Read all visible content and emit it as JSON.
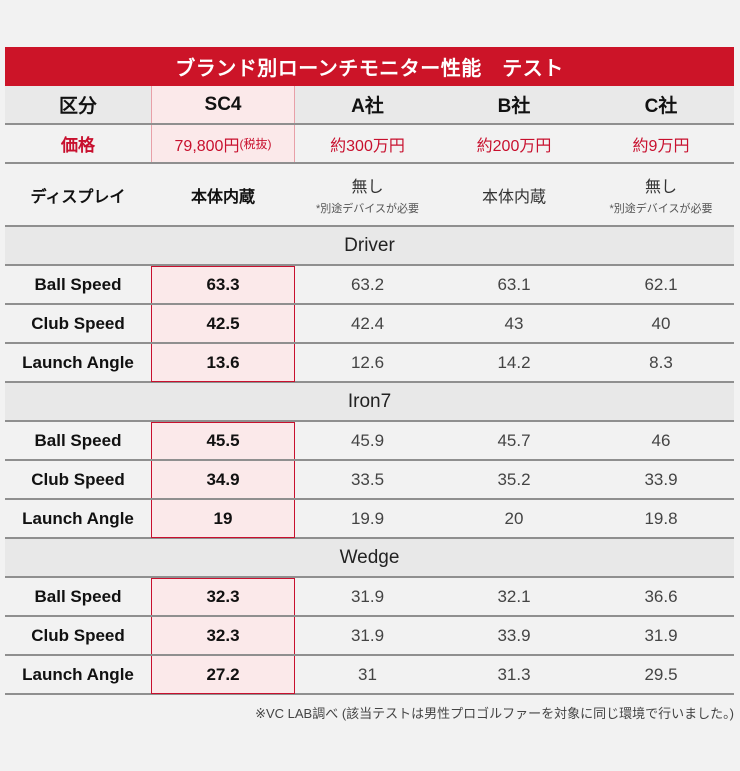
{
  "title": "ブランド別ローンチモニター性能　テスト",
  "header": {
    "category_label": "区分",
    "columns": [
      "SC4",
      "A社",
      "B社",
      "C社"
    ]
  },
  "price": {
    "label": "価格",
    "sc4_main": "79,800円",
    "sc4_note": "(税抜)",
    "a": "約300万円",
    "b": "約200万円",
    "c": "約9万円"
  },
  "display": {
    "label": "ディスプレイ",
    "sc4": "本体内蔵",
    "a": "無し",
    "a_note": "*別途デバイスが必要",
    "b": "本体内蔵",
    "c": "無し",
    "c_note": "*別途デバイスが必要"
  },
  "sections": [
    {
      "name": "Driver",
      "rows": [
        {
          "label": "Ball Speed",
          "values": [
            "63.3",
            "63.2",
            "63.1",
            "62.1"
          ]
        },
        {
          "label": "Club Speed",
          "values": [
            "42.5",
            "42.4",
            "43",
            "40"
          ]
        },
        {
          "label": "Launch Angle",
          "values": [
            "13.6",
            "12.6",
            "14.2",
            "8.3"
          ]
        }
      ]
    },
    {
      "name": "Iron7",
      "rows": [
        {
          "label": "Ball Speed",
          "values": [
            "45.5",
            "45.9",
            "45.7",
            "46"
          ]
        },
        {
          "label": "Club Speed",
          "values": [
            "34.9",
            "33.5",
            "35.2",
            "33.9"
          ]
        },
        {
          "label": "Launch Angle",
          "values": [
            "19",
            "19.9",
            "20",
            "19.8"
          ]
        }
      ]
    },
    {
      "name": "Wedge",
      "rows": [
        {
          "label": "Ball Speed",
          "values": [
            "32.3",
            "31.9",
            "32.1",
            "36.6"
          ]
        },
        {
          "label": "Club Speed",
          "values": [
            "32.3",
            "31.9",
            "33.9",
            "31.9"
          ]
        },
        {
          "label": "Launch Angle",
          "values": [
            "27.2",
            "31",
            "31.3",
            "29.5"
          ]
        }
      ]
    }
  ],
  "footnote": "※VC LAB調べ (該当テストは男性プロゴルファーを対象に同じ環境で行いました。)",
  "colors": {
    "accent": "#cc1428",
    "highlight_bg": "#fbe9ea",
    "background": "#f2f2f2"
  }
}
